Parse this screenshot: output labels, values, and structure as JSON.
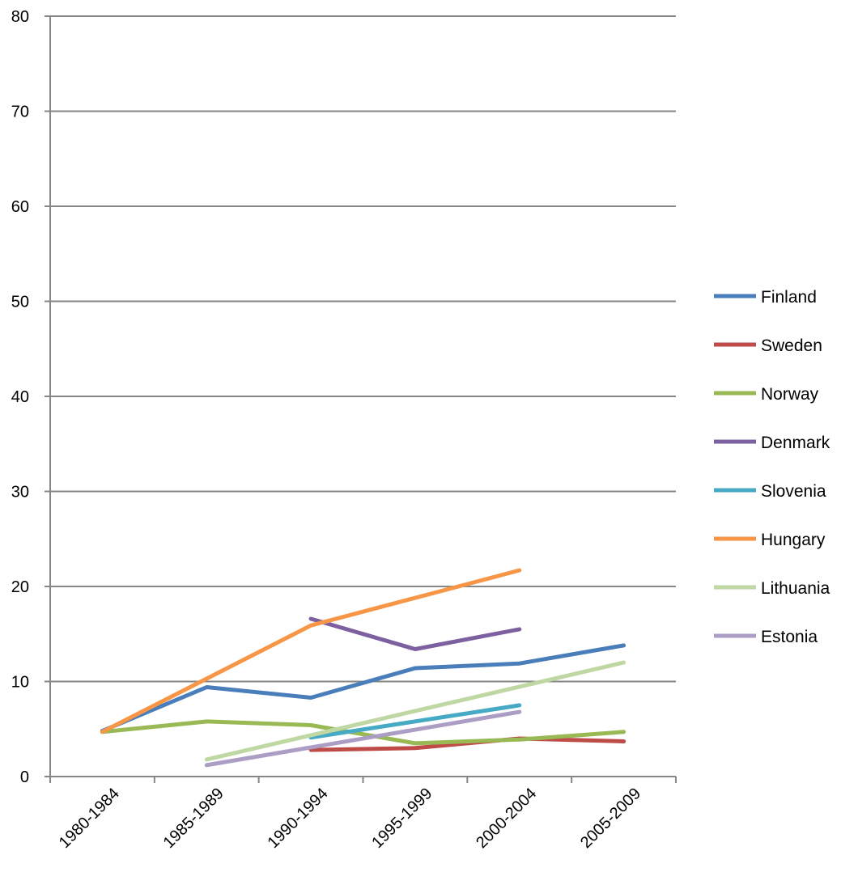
{
  "chart_data": {
    "type": "line",
    "title": "",
    "xlabel": "",
    "ylabel": "",
    "ylim": [
      0,
      80
    ],
    "y_ticks": [
      0,
      10,
      20,
      30,
      40,
      50,
      60,
      70,
      80
    ],
    "grid": true,
    "legend_position": "right",
    "categories": [
      "1980-1984",
      "1985-1989",
      "1990-1994",
      "1995-1999",
      "2000-2004",
      "2005-2009"
    ],
    "series": [
      {
        "name": "Finland",
        "color": "#4a7ebb",
        "values": [
          4.8,
          9.4,
          8.3,
          11.4,
          11.9,
          13.8
        ]
      },
      {
        "name": "Sweden",
        "color": "#be4b48",
        "values": [
          null,
          null,
          2.8,
          3.0,
          4.0,
          3.7
        ]
      },
      {
        "name": "Norway",
        "color": "#98b954",
        "values": [
          4.7,
          5.8,
          5.4,
          3.5,
          3.9,
          4.7
        ]
      },
      {
        "name": "Denmark",
        "color": "#7d60a0",
        "values": [
          null,
          null,
          16.6,
          13.4,
          15.5,
          null
        ]
      },
      {
        "name": "Slovenia",
        "color": "#46aac5",
        "values": [
          null,
          null,
          4.1,
          null,
          7.5,
          null
        ]
      },
      {
        "name": "Hungary",
        "color": "#f79646",
        "values": [
          4.7,
          10.3,
          15.9,
          null,
          21.7,
          null
        ]
      },
      {
        "name": "Lithuania",
        "color": "#bfd7a2",
        "values": [
          null,
          1.8,
          null,
          null,
          null,
          12.0
        ]
      },
      {
        "name": "Estonia",
        "color": "#ac9dc5",
        "values": [
          null,
          1.2,
          null,
          null,
          6.8,
          null
        ]
      }
    ]
  }
}
